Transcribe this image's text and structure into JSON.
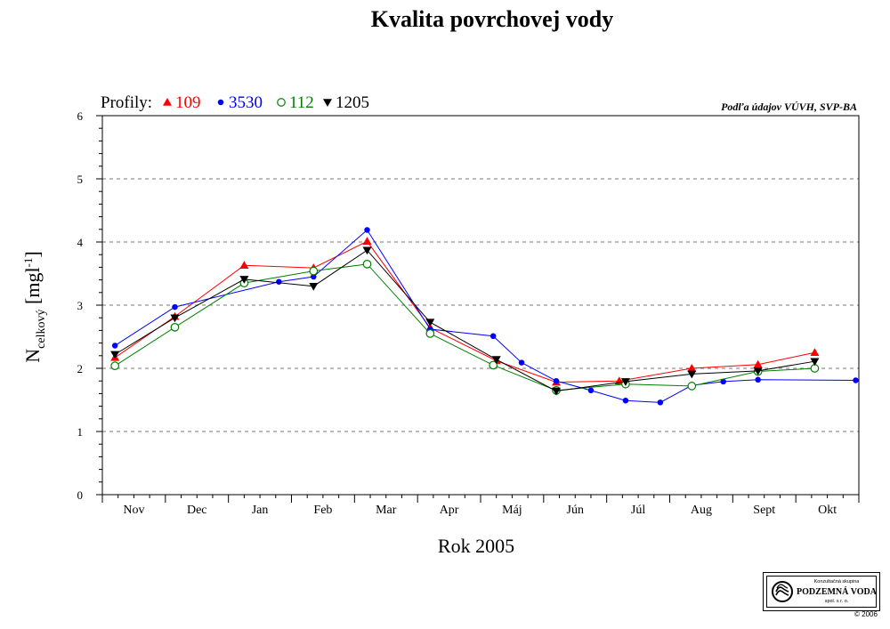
{
  "chart_data": {
    "type": "line",
    "title": "Kvalita povrchovej vody",
    "source_note": "Podľa údajov VÚVH, SVP-BA",
    "legend_prefix": "Profily:",
    "ylabel_main": "N",
    "ylabel_sub": "celkový",
    "ylabel_unit_open": " [mgl",
    "ylabel_unit_sup": "-1",
    "ylabel_unit_close": "]",
    "xlabel": "Rok 2005",
    "ylim": [
      0,
      6
    ],
    "yticks": [
      0,
      1,
      2,
      3,
      4,
      5,
      6
    ],
    "grid": "dashed horizontal at each integer",
    "legend_position": "top-left",
    "categories": [
      "Nov",
      "Dec",
      "Jan",
      "Feb",
      "Mar",
      "Apr",
      "Máj",
      "Jún",
      "Júl",
      "Aug",
      "Sept",
      "Okt"
    ],
    "series": [
      {
        "name": "109",
        "color": "#ff0000",
        "marker": "triangle-up",
        "points": [
          {
            "x": 0.2,
            "y": 2.17
          },
          {
            "x": 1.15,
            "y": 2.82
          },
          {
            "x": 2.25,
            "y": 3.63
          },
          {
            "x": 3.35,
            "y": 3.59
          },
          {
            "x": 4.2,
            "y": 4.01
          },
          {
            "x": 5.2,
            "y": 2.64
          },
          {
            "x": 6.25,
            "y": 2.12
          },
          {
            "x": 7.2,
            "y": 1.78
          },
          {
            "x": 8.2,
            "y": 1.8
          },
          {
            "x": 9.35,
            "y": 2.0
          },
          {
            "x": 10.4,
            "y": 2.06
          },
          {
            "x": 11.3,
            "y": 2.25
          }
        ]
      },
      {
        "name": "3530",
        "color": "#0000ff",
        "marker": "circle-filled",
        "points": [
          {
            "x": 0.2,
            "y": 2.36
          },
          {
            "x": 1.15,
            "y": 2.97
          },
          {
            "x": 2.8,
            "y": 3.37
          },
          {
            "x": 3.35,
            "y": 3.45
          },
          {
            "x": 4.2,
            "y": 4.19
          },
          {
            "x": 5.2,
            "y": 2.62
          },
          {
            "x": 6.2,
            "y": 2.51
          },
          {
            "x": 6.65,
            "y": 2.09
          },
          {
            "x": 7.2,
            "y": 1.8
          },
          {
            "x": 7.75,
            "y": 1.65
          },
          {
            "x": 8.3,
            "y": 1.49
          },
          {
            "x": 8.85,
            "y": 1.46
          },
          {
            "x": 9.35,
            "y": 1.73
          },
          {
            "x": 9.85,
            "y": 1.79
          },
          {
            "x": 10.4,
            "y": 1.82
          },
          {
            "x": 11.95,
            "y": 1.81
          }
        ]
      },
      {
        "name": "112",
        "color": "#008000",
        "marker": "circle-open",
        "points": [
          {
            "x": 0.2,
            "y": 2.04
          },
          {
            "x": 1.15,
            "y": 2.65
          },
          {
            "x": 2.25,
            "y": 3.35
          },
          {
            "x": 3.35,
            "y": 3.54
          },
          {
            "x": 4.2,
            "y": 3.65
          },
          {
            "x": 5.2,
            "y": 2.55
          },
          {
            "x": 6.2,
            "y": 2.05
          },
          {
            "x": 7.2,
            "y": 1.65
          },
          {
            "x": 8.3,
            "y": 1.75
          },
          {
            "x": 9.35,
            "y": 1.72
          },
          {
            "x": 10.4,
            "y": 1.95
          },
          {
            "x": 11.3,
            "y": 2.0
          }
        ]
      },
      {
        "name": "1205",
        "color": "#000000",
        "marker": "triangle-down",
        "points": [
          {
            "x": 0.2,
            "y": 2.22
          },
          {
            "x": 1.15,
            "y": 2.8
          },
          {
            "x": 2.25,
            "y": 3.41
          },
          {
            "x": 3.35,
            "y": 3.3
          },
          {
            "x": 4.2,
            "y": 3.87
          },
          {
            "x": 5.2,
            "y": 2.73
          },
          {
            "x": 6.25,
            "y": 2.14
          },
          {
            "x": 7.2,
            "y": 1.64
          },
          {
            "x": 8.3,
            "y": 1.79
          },
          {
            "x": 9.35,
            "y": 1.91
          },
          {
            "x": 10.4,
            "y": 1.96
          },
          {
            "x": 11.3,
            "y": 2.11
          }
        ]
      }
    ]
  },
  "logo": {
    "top_text": "Konzultačná skupina",
    "main_text": "PODZEMNÁ VODA",
    "sub_text": "spol. s r. o.",
    "copyright": "© 2006"
  }
}
